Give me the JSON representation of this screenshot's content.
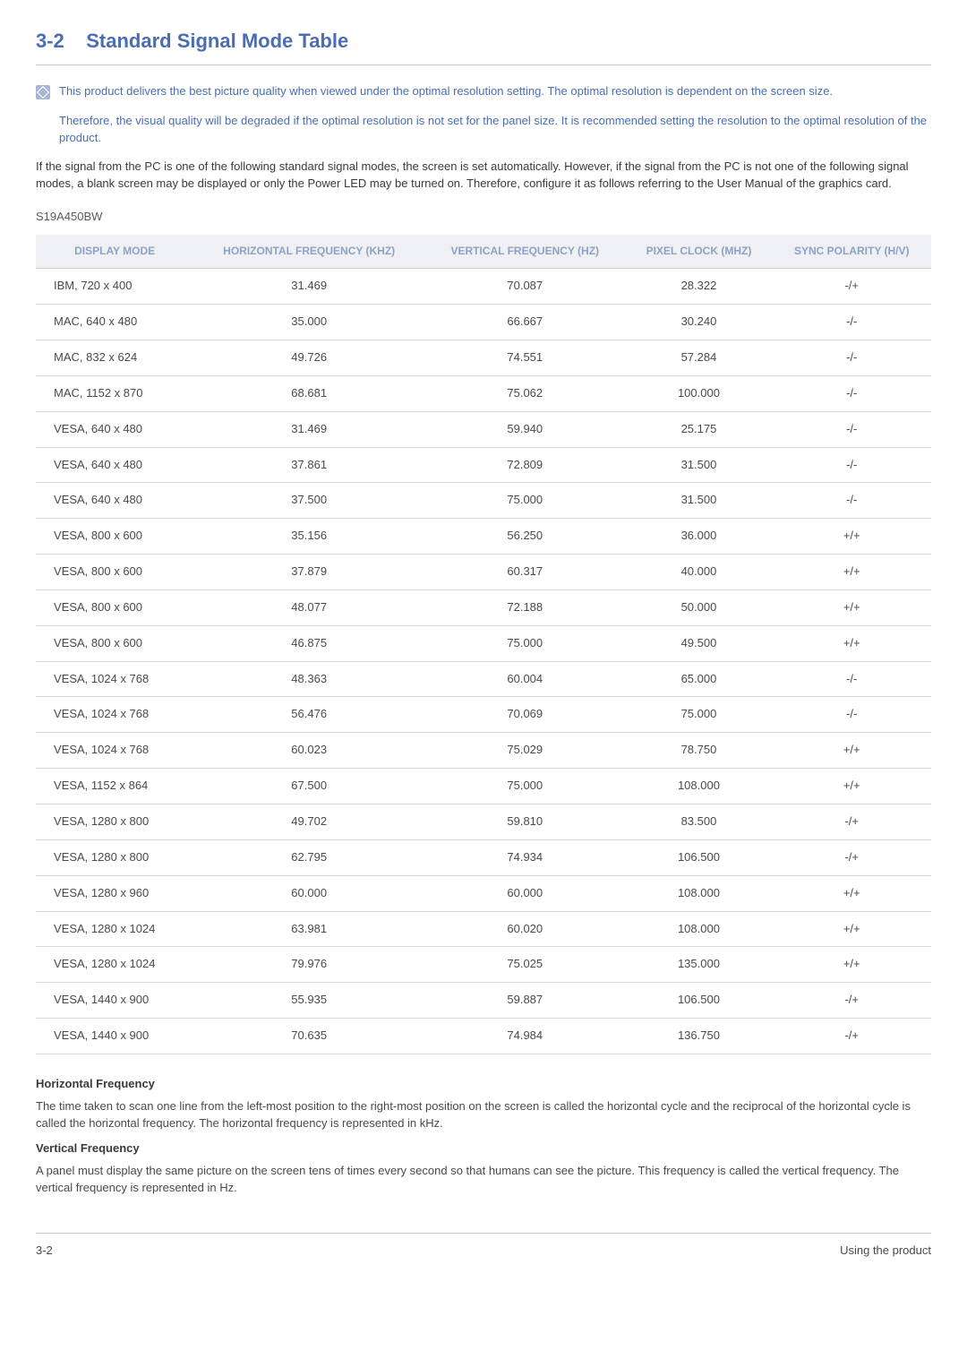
{
  "heading": {
    "number": "3-2",
    "title": "Standard Signal Mode Table"
  },
  "note": {
    "line1": "This product delivers the best picture quality when viewed under the optimal resolution setting. The optimal resolution is dependent on the screen size.",
    "line2": "Therefore, the visual quality will be degraded if the optimal resolution is not set for the panel size. It is recommended setting the resolution to the optimal resolution of the product."
  },
  "intro": "If the signal from the PC is one of the following standard signal modes, the screen is set automatically. However, if the signal from the PC is not one of the following signal modes, a blank screen may be displayed or only the Power LED may be turned on. Therefore, configure it as follows referring to the User Manual of the graphics card.",
  "model": "S19A450BW",
  "table": {
    "columns": [
      "DISPLAY MODE",
      "HORIZONTAL FREQUENCY (KHZ)",
      "VERTICAL FREQUENCY  (HZ)",
      "PIXEL CLOCK (MHZ)",
      "SYNC POLARITY (H/V)"
    ],
    "rows": [
      [
        "IBM, 720 x 400",
        "31.469",
        "70.087",
        "28.322",
        "-/+"
      ],
      [
        "MAC, 640 x 480",
        "35.000",
        "66.667",
        "30.240",
        "-/-"
      ],
      [
        "MAC, 832 x 624",
        "49.726",
        "74.551",
        "57.284",
        "-/-"
      ],
      [
        "MAC, 1152 x 870",
        "68.681",
        "75.062",
        "100.000",
        "-/-"
      ],
      [
        "VESA, 640 x 480",
        "31.469",
        "59.940",
        "25.175",
        "-/-"
      ],
      [
        "VESA, 640 x 480",
        "37.861",
        "72.809",
        "31.500",
        "-/-"
      ],
      [
        "VESA, 640 x 480",
        "37.500",
        "75.000",
        "31.500",
        "-/-"
      ],
      [
        "VESA, 800 x 600",
        "35.156",
        "56.250",
        "36.000",
        "+/+"
      ],
      [
        "VESA, 800 x 600",
        "37.879",
        "60.317",
        "40.000",
        "+/+"
      ],
      [
        "VESA, 800 x 600",
        "48.077",
        "72.188",
        "50.000",
        "+/+"
      ],
      [
        "VESA, 800 x 600",
        "46.875",
        "75.000",
        "49.500",
        "+/+"
      ],
      [
        "VESA, 1024 x 768",
        "48.363",
        "60.004",
        "65.000",
        "-/-"
      ],
      [
        "VESA, 1024 x 768",
        "56.476",
        "70.069",
        "75.000",
        "-/-"
      ],
      [
        "VESA, 1024 x 768",
        "60.023",
        "75.029",
        "78.750",
        "+/+"
      ],
      [
        "VESA, 1152 x 864",
        "67.500",
        "75.000",
        "108.000",
        "+/+"
      ],
      [
        "VESA, 1280 x 800",
        "49.702",
        "59.810",
        "83.500",
        "-/+"
      ],
      [
        "VESA, 1280 x 800",
        "62.795",
        "74.934",
        "106.500",
        "-/+"
      ],
      [
        "VESA, 1280 x 960",
        "60.000",
        "60.000",
        "108.000",
        "+/+"
      ],
      [
        "VESA, 1280 x 1024",
        "63.981",
        "60.020",
        "108.000",
        "+/+"
      ],
      [
        "VESA, 1280 x 1024",
        "79.976",
        "75.025",
        "135.000",
        "+/+"
      ],
      [
        "VESA, 1440 x 900",
        "55.935",
        "59.887",
        "106.500",
        "-/+"
      ],
      [
        "VESA, 1440 x 900",
        "70.635",
        "74.984",
        "136.750",
        "-/+"
      ]
    ]
  },
  "defs": {
    "hf_title": "Horizontal Frequency",
    "hf_body": "The time taken to scan one line from the left-most position to the right-most position on the screen is called the horizontal cycle and the reciprocal of the horizontal cycle is called the horizontal frequency. The horizontal frequency is represented in kHz.",
    "vf_title": "Vertical Frequency",
    "vf_body": "A panel must display the same picture on the screen tens of times every second so that humans can see the picture. This frequency is called the vertical frequency. The vertical frequency is represented in Hz."
  },
  "footer": {
    "left": "3-2",
    "right": "Using the product"
  }
}
